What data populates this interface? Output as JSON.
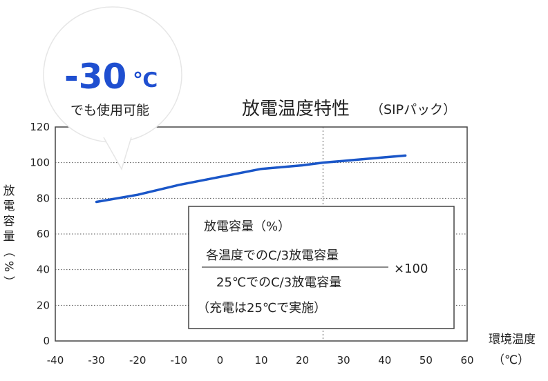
{
  "chart_data": {
    "type": "line",
    "title": "放電温度特性",
    "subtitle": "（SIPパック）",
    "xlabel_line1": "環境温度",
    "xlabel_line2": "（℃）",
    "ylabel": "放電容量（%）",
    "xlim": [
      -40,
      60
    ],
    "ylim": [
      0,
      120
    ],
    "x_ticks": [
      "-40",
      "-30",
      "-20",
      "-10",
      "0",
      "10",
      "20",
      "30",
      "40",
      "50",
      "60"
    ],
    "y_ticks": [
      "0",
      "20",
      "40",
      "60",
      "80",
      "100",
      "120"
    ],
    "reference_line_x": 25,
    "grid": true,
    "line_color": "#1a56c8",
    "series": [
      {
        "x": [
          -30,
          -20,
          -10,
          0,
          10,
          20,
          25,
          30,
          40,
          45
        ],
        "y": [
          78,
          82,
          87.5,
          92,
          96.5,
          98.5,
          100,
          101,
          103,
          104
        ]
      }
    ]
  },
  "callout": {
    "temp_value": "-30",
    "temp_unit": "℃",
    "caption": "でも使用可能",
    "accent_color": "#1f4fd0"
  },
  "formula": {
    "title": "放電容量（%）",
    "numerator": "各温度でのC/3放電容量",
    "denominator": "25℃でのC/3放電容量",
    "multiplier": "×100",
    "note": "（充電は25℃で実施）"
  }
}
